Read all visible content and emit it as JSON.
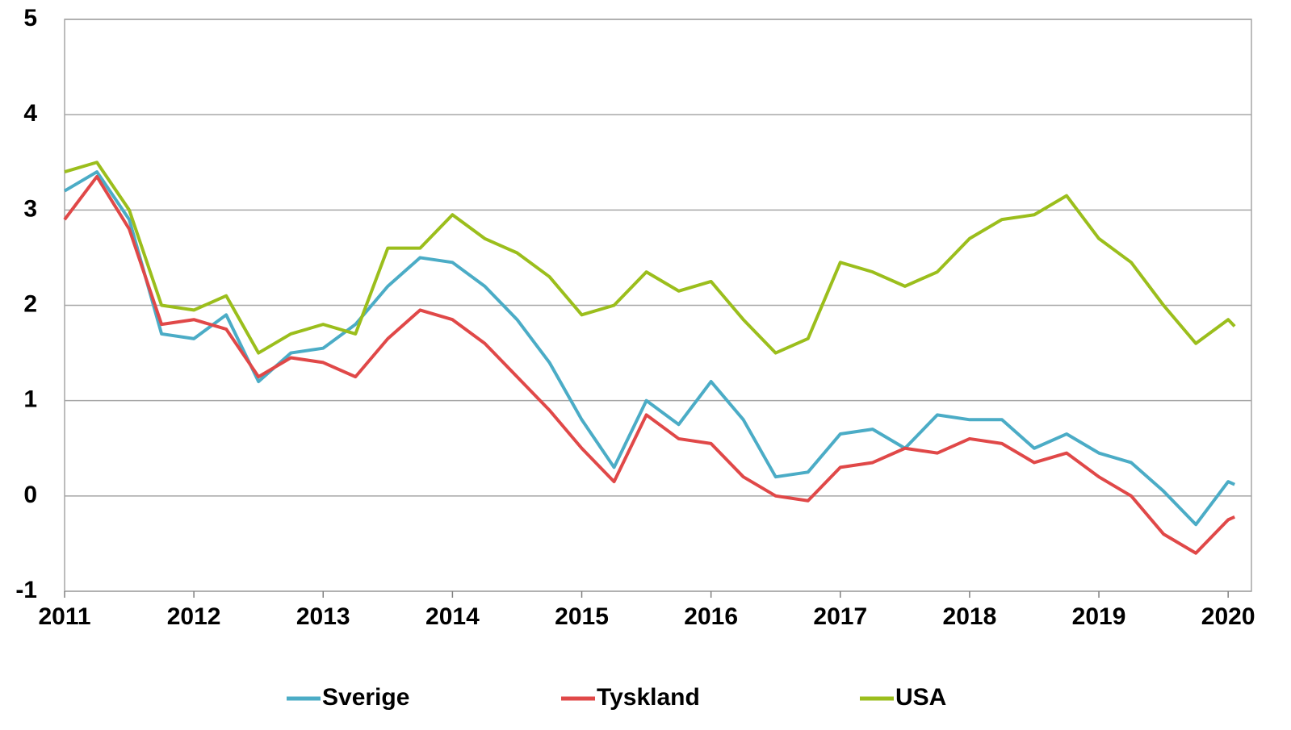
{
  "chart_data": {
    "type": "line",
    "x": [
      2011.0,
      2011.25,
      2011.5,
      2011.75,
      2012.0,
      2012.25,
      2012.5,
      2012.75,
      2013.0,
      2013.25,
      2013.5,
      2013.75,
      2014.0,
      2014.25,
      2014.5,
      2014.75,
      2015.0,
      2015.25,
      2015.5,
      2015.75,
      2016.0,
      2016.25,
      2016.5,
      2016.75,
      2017.0,
      2017.25,
      2017.5,
      2017.75,
      2018.0,
      2018.25,
      2018.5,
      2018.75,
      2019.0,
      2019.25,
      2019.5,
      2019.75,
      2020.0,
      2020.05
    ],
    "series": [
      {
        "name": "Sverige",
        "color": "#4bacc6",
        "values": [
          3.2,
          3.4,
          2.9,
          1.7,
          1.65,
          1.9,
          1.2,
          1.5,
          1.55,
          1.8,
          2.2,
          2.5,
          2.45,
          2.2,
          1.85,
          1.4,
          0.8,
          0.3,
          1.0,
          0.75,
          1.2,
          0.8,
          0.2,
          0.25,
          0.65,
          0.7,
          0.5,
          0.85,
          0.8,
          0.8,
          0.5,
          0.65,
          0.45,
          0.35,
          0.05,
          -0.3,
          0.15,
          0.12
        ]
      },
      {
        "name": "Tyskland",
        "color": "#e04848",
        "values": [
          2.9,
          3.35,
          2.8,
          1.8,
          1.85,
          1.75,
          1.25,
          1.45,
          1.4,
          1.25,
          1.65,
          1.95,
          1.85,
          1.6,
          1.25,
          0.9,
          0.5,
          0.15,
          0.85,
          0.6,
          0.55,
          0.2,
          0.0,
          -0.05,
          0.3,
          0.35,
          0.5,
          0.45,
          0.6,
          0.55,
          0.35,
          0.45,
          0.2,
          0.0,
          -0.4,
          -0.6,
          -0.25,
          -0.22
        ]
      },
      {
        "name": "USA",
        "color": "#9bbe1c",
        "values": [
          3.4,
          3.5,
          3.0,
          2.0,
          1.95,
          2.1,
          1.5,
          1.7,
          1.8,
          1.7,
          2.6,
          2.6,
          2.95,
          2.7,
          2.55,
          2.3,
          1.9,
          2.0,
          2.35,
          2.15,
          2.25,
          1.85,
          1.5,
          1.65,
          2.45,
          2.35,
          2.2,
          2.35,
          2.7,
          2.9,
          2.95,
          3.15,
          2.7,
          2.45,
          2.0,
          1.6,
          1.85,
          1.78
        ]
      }
    ],
    "xlim": [
      2011,
      2020.18
    ],
    "xticks": [
      2011,
      2012,
      2013,
      2014,
      2015,
      2016,
      2017,
      2018,
      2019,
      2020
    ],
    "ylim": [
      -1,
      5
    ],
    "yticks": [
      -1,
      0,
      1,
      2,
      3,
      4,
      5
    ],
    "grid": true,
    "legend": "bottom"
  }
}
